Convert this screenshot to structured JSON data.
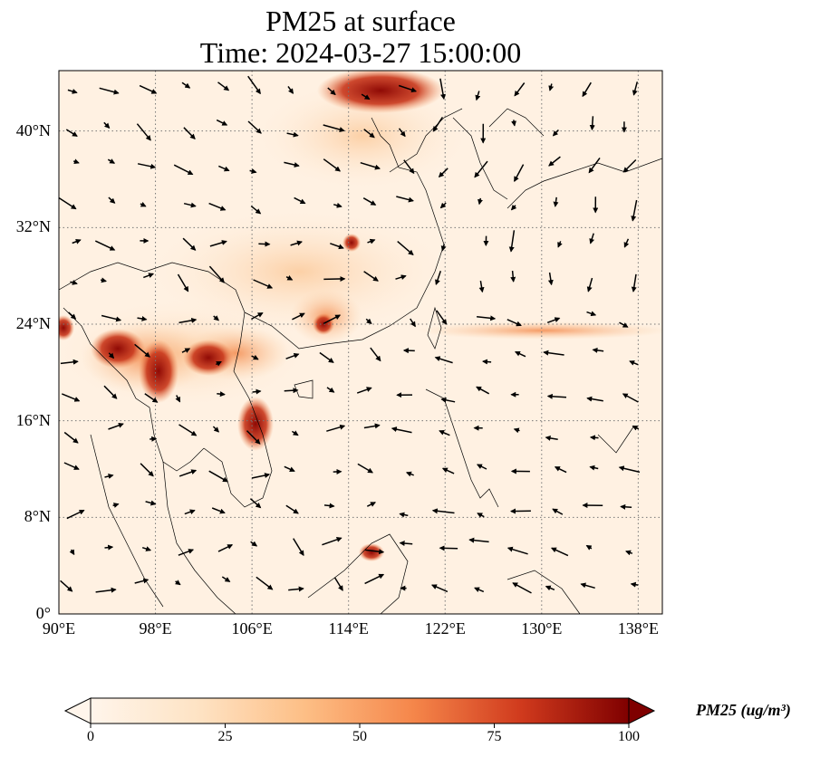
{
  "title": {
    "line1": "PM25 at surface",
    "line2": "Time: 2024-03-27 15:00:00"
  },
  "map": {
    "extent": {
      "lon_min": 90,
      "lon_max": 140,
      "lat_min": 0,
      "lat_max": 45
    },
    "lat_ticks": [
      {
        "value": 40,
        "label": "40°N"
      },
      {
        "value": 32,
        "label": "32°N"
      },
      {
        "value": 24,
        "label": "24°N"
      },
      {
        "value": 16,
        "label": "16°N"
      },
      {
        "value": 8,
        "label": "8°N"
      },
      {
        "value": 0,
        "label": "0°"
      }
    ],
    "lon_ticks": [
      {
        "value": 90,
        "label": "90°E"
      },
      {
        "value": 98,
        "label": "98°E"
      },
      {
        "value": 106,
        "label": "106°E"
      },
      {
        "value": 114,
        "label": "114°E"
      },
      {
        "value": 122,
        "label": "122°E"
      },
      {
        "value": 130,
        "label": "130°E"
      },
      {
        "value": 138,
        "label": "138°E"
      }
    ],
    "grid": "dotted",
    "wind_vectors": "black quiver arrows"
  },
  "colorbar": {
    "title": "PM25 (ug/m³)",
    "min": 0,
    "max": 100,
    "ticks": [
      {
        "value": 0,
        "label": "0"
      },
      {
        "value": 25,
        "label": "25"
      },
      {
        "value": 50,
        "label": "50"
      },
      {
        "value": 75,
        "label": "75"
      },
      {
        "value": 100,
        "label": "100"
      }
    ],
    "colors": [
      "#fff5eb",
      "#fdd9b0",
      "#fdab66",
      "#f26b2c",
      "#c13b1b",
      "#7f0000"
    ],
    "extend": "both"
  },
  "colors": {
    "low": "#fff5eb",
    "mid": "#fdab66",
    "high": "#7f0000"
  }
}
